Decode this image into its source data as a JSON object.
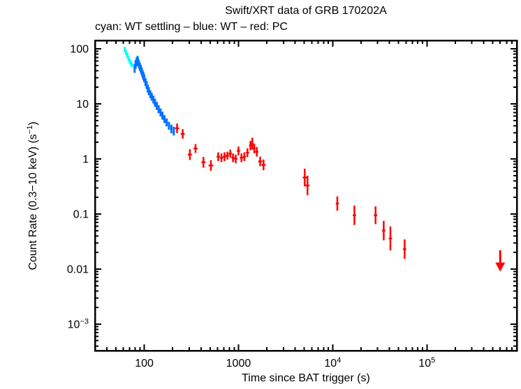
{
  "page": {
    "background": "#ffffff"
  },
  "chart_data": {
    "type": "scatter",
    "title": "Swift/XRT data of GRB 170202A",
    "subtitle": "cyan: WT settling – blue: WT – red: PC",
    "xlabel": "Time since BAT trigger (s)",
    "ylabel": "Count Rate (0.3−10 keV) (s^{−1})",
    "xscale": "log",
    "yscale": "log",
    "xlim": [
      30,
      900000
    ],
    "ylim": [
      0.00033,
      142
    ],
    "grid": false,
    "axis_color": "#000000",
    "xticks": [
      {
        "v": 100,
        "label": "100"
      },
      {
        "v": 1000,
        "label": "1000"
      },
      {
        "v": 10000,
        "label": "10^{4}"
      },
      {
        "v": 100000,
        "label": "10^{5}"
      }
    ],
    "yticks": [
      {
        "v": 100,
        "label": "100"
      },
      {
        "v": 10,
        "label": "10"
      },
      {
        "v": 1,
        "label": "1"
      },
      {
        "v": 0.1,
        "label": "0.1"
      },
      {
        "v": 0.01,
        "label": "0.01"
      },
      {
        "v": 0.001,
        "label": "10^{−3}"
      }
    ],
    "series": [
      {
        "name": "WT settling",
        "color": "#00ffff",
        "points": [
          [
            62,
            97,
            0.018,
            0.12
          ],
          [
            64,
            86,
            0.018,
            0.12
          ],
          [
            66,
            76,
            0.018,
            0.12
          ],
          [
            68,
            67,
            0.018,
            0.11
          ],
          [
            70,
            60,
            0.018,
            0.11
          ],
          [
            72,
            55,
            0.018,
            0.1
          ],
          [
            74,
            51,
            0.018,
            0.1
          ]
        ]
      },
      {
        "name": "WT",
        "color": "#0072ff",
        "points": [
          [
            79,
            44,
            0.02,
            0.2
          ],
          [
            81,
            52,
            0.02,
            0.2
          ],
          [
            83,
            58,
            0.02,
            0.2
          ],
          [
            85,
            63,
            0.02,
            0.18
          ],
          [
            86,
            57,
            0.02,
            0.18
          ],
          [
            88,
            52,
            0.02,
            0.18
          ],
          [
            90,
            47,
            0.02,
            0.18
          ],
          [
            92,
            43,
            0.02,
            0.18
          ],
          [
            94,
            39,
            0.02,
            0.18
          ],
          [
            96,
            35,
            0.02,
            0.18
          ],
          [
            98,
            32,
            0.02,
            0.18
          ],
          [
            100,
            29,
            0.02,
            0.18
          ],
          [
            103,
            25,
            0.02,
            0.18
          ],
          [
            106,
            22,
            0.02,
            0.18
          ],
          [
            109,
            19,
            0.02,
            0.18
          ],
          [
            112,
            17,
            0.02,
            0.18
          ],
          [
            116,
            15,
            0.02,
            0.18
          ],
          [
            120,
            13.5,
            0.02,
            0.18
          ],
          [
            125,
            12,
            0.02,
            0.18
          ],
          [
            130,
            10.5,
            0.02,
            0.18
          ],
          [
            136,
            9.2,
            0.02,
            0.18
          ],
          [
            142,
            8.0,
            0.02,
            0.18
          ],
          [
            149,
            7.0,
            0.025,
            0.18
          ],
          [
            156,
            6.1,
            0.025,
            0.18
          ],
          [
            164,
            5.3,
            0.025,
            0.18
          ],
          [
            173,
            4.6,
            0.025,
            0.18
          ],
          [
            183,
            4.0,
            0.025,
            0.18
          ],
          [
            194,
            3.5,
            0.025,
            0.2
          ],
          [
            206,
            3.2,
            0.025,
            0.2
          ]
        ]
      },
      {
        "name": "PC",
        "color": "#ff0000",
        "points": [
          [
            223,
            3.6,
            0.05,
            0.22
          ],
          [
            256,
            2.85,
            0.05,
            0.22
          ],
          [
            305,
            1.2,
            0.05,
            0.25
          ],
          [
            350,
            1.55,
            0.05,
            0.2
          ],
          [
            425,
            0.87,
            0.05,
            0.25
          ],
          [
            510,
            0.76,
            0.06,
            0.25
          ],
          [
            610,
            1.1,
            0.04,
            0.2
          ],
          [
            660,
            1.05,
            0.04,
            0.2
          ],
          [
            710,
            1.1,
            0.04,
            0.2
          ],
          [
            762,
            1.15,
            0.04,
            0.18
          ],
          [
            818,
            1.25,
            0.04,
            0.18
          ],
          [
            875,
            1.05,
            0.04,
            0.2
          ],
          [
            935,
            1.0,
            0.04,
            0.2
          ],
          [
            1000,
            1.4,
            0.04,
            0.2
          ],
          [
            1075,
            1.05,
            0.04,
            0.2
          ],
          [
            1155,
            1.1,
            0.04,
            0.2
          ],
          [
            1245,
            1.3,
            0.04,
            0.2
          ],
          [
            1340,
            1.75,
            0.035,
            0.22
          ],
          [
            1405,
            1.9,
            0.03,
            0.28
          ],
          [
            1470,
            1.55,
            0.03,
            0.22
          ],
          [
            1565,
            1.35,
            0.04,
            0.22
          ],
          [
            1700,
            0.9,
            0.05,
            0.22
          ],
          [
            1845,
            0.78,
            0.05,
            0.25
          ],
          [
            5050,
            0.46,
            0.05,
            0.45
          ],
          [
            5400,
            0.33,
            0.05,
            0.5
          ],
          [
            11200,
            0.155,
            0.04,
            0.35
          ],
          [
            17000,
            0.095,
            0.04,
            0.5
          ],
          [
            28500,
            0.095,
            0.04,
            0.45
          ],
          [
            34800,
            0.05,
            0.04,
            0.5
          ],
          [
            41000,
            0.036,
            0.04,
            0.65
          ],
          [
            58000,
            0.023,
            0.04,
            0.5
          ]
        ]
      }
    ],
    "upper_limit": {
      "t": 600000,
      "rate_top": 0.022,
      "rate_tip": 0.009,
      "color": "#ff0000"
    }
  }
}
